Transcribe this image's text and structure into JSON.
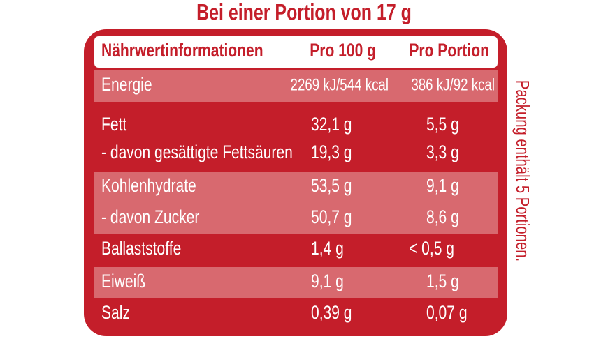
{
  "title": "Bei einer Portion von 17 g",
  "side_note": "Packung enthält 5 Portionen.",
  "table": {
    "header": [
      "Nährwertinformationen",
      "Pro 100 g",
      "Pro Portion"
    ],
    "rows": [
      [
        "Energie",
        "2269 kJ/544 kcal",
        "386 kJ/92 kcal"
      ],
      [
        "Fett",
        "32,1 g",
        "5,5 g"
      ],
      [
        "- davon gesättigte Fettsäuren",
        "19,3 g",
        "3,3 g"
      ],
      [
        "Kohlenhydrate",
        "53,5 g",
        "9,1 g"
      ],
      [
        "- davon Zucker",
        "50,7 g",
        "8,6 g"
      ],
      [
        "Ballaststoffe",
        "1,4 g",
        "< 0,5 g"
      ],
      [
        "Eiweiß",
        "9,1 g",
        "1,5 g"
      ],
      [
        "Salz",
        "0,39 g",
        "0,07 g"
      ]
    ]
  }
}
